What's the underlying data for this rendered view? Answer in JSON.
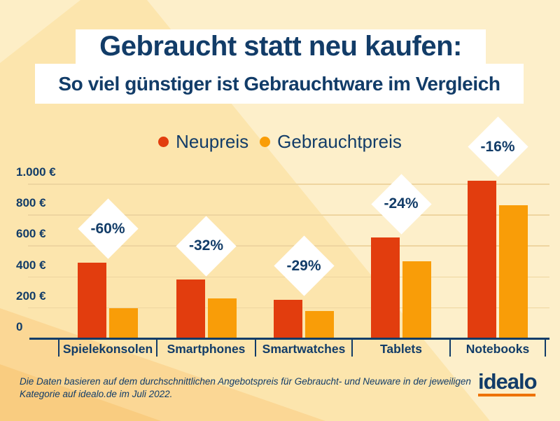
{
  "title": {
    "line1": "Gebraucht statt neu kaufen:",
    "line2": "So viel günstiger ist Gebrauchtware im Vergleich"
  },
  "legend": [
    {
      "label": "Neupreis",
      "color": "#e23d0e"
    },
    {
      "label": "Gebrauchtpreis",
      "color": "#f99d08"
    }
  ],
  "chart_data": {
    "type": "bar",
    "title": "Gebraucht statt neu kaufen: So viel günstiger ist Gebrauchtware im Vergleich",
    "categories": [
      "Spielekonsolen",
      "Smartphones",
      "Smartwatches",
      "Tablets",
      "Notebooks"
    ],
    "series": [
      {
        "name": "Neupreis",
        "color": "#e23d0e",
        "values": [
          490,
          380,
          250,
          650,
          1020
        ]
      },
      {
        "name": "Gebrauchtpreis",
        "color": "#f99d08",
        "values": [
          195,
          260,
          175,
          500,
          860
        ]
      }
    ],
    "discount_labels": [
      "-60%",
      "-32%",
      "-29%",
      "-24%",
      "-16%"
    ],
    "y_ticks": [
      {
        "label": "1.000 €",
        "value": 1000
      },
      {
        "label": "800 €",
        "value": 800
      },
      {
        "label": "600 €",
        "value": 600
      },
      {
        "label": "400 €",
        "value": 400
      },
      {
        "label": "200 €",
        "value": 200
      },
      {
        "label": "0",
        "value": 0
      }
    ],
    "y_unit": "€",
    "ylim": [
      0,
      1100
    ],
    "grid": true,
    "legend_position": "top",
    "values_note": "values estimated from gridlines"
  },
  "footer": {
    "note": "Die Daten basieren auf dem durchschnittlichen Angebotspreis für Gebraucht- und Neuware in der jeweiligen Kategorie auf idealo.de im Juli 2022.",
    "logo": "idealo"
  },
  "colors": {
    "navy": "#123c68",
    "red": "#e23d0e",
    "orange": "#f99d08",
    "background": "#fce5ad",
    "background_light": "#fdefca",
    "background_dark": "#fbd795",
    "background_darker": "#f9cc80",
    "gridline": "#eed5a0",
    "logo_underline": "#ee7203",
    "badge_bg": "#ffffff"
  }
}
